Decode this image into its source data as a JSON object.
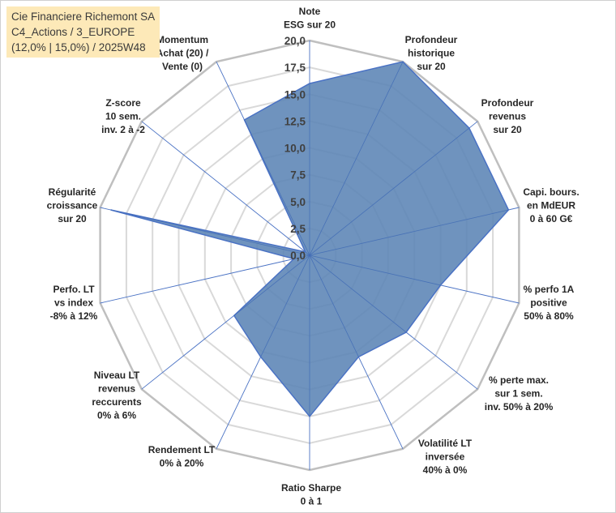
{
  "chart_data": {
    "type": "radar",
    "title": [
      "Cie Financiere Richemont SA",
      "C4_Actions / 3_EUROPE",
      "(12,0% | 15,0%) / 2025W48"
    ],
    "rmin": 0,
    "rmax": 20,
    "ticks": [
      "0,0",
      "2,5",
      "5,0",
      "7,5",
      "10,0",
      "12,5",
      "15,0",
      "17,5",
      "20,0"
    ],
    "tick_values": [
      0,
      2.5,
      5,
      7.5,
      10,
      12.5,
      15,
      17.5,
      20
    ],
    "colors": {
      "fill": "#5b84b5",
      "stroke": "#4a72c4",
      "grid": "#d9d9d9",
      "spoke": "#4a72c4",
      "background": "#ffffff"
    },
    "axes": [
      {
        "label": [
          "Note",
          "ESG sur 20"
        ],
        "value": 16
      },
      {
        "label": [
          "Profondeur",
          "historique",
          "sur 20"
        ],
        "value": 20
      },
      {
        "label": [
          "Profondeur",
          "revenus",
          "sur 20"
        ],
        "value": 19
      },
      {
        "label": [
          "Capi. bours.",
          "en MdEUR",
          "0 à 60 G€"
        ],
        "value": 19
      },
      {
        "label": [
          "% perfo 1A",
          "positive",
          "50% à 80%"
        ],
        "value": 12.5
      },
      {
        "label": [
          "% perte max.",
          "sur 1 sem.",
          "inv. 50% à 20%"
        ],
        "value": 11.5
      },
      {
        "label": [
          "Volatilité LT",
          "inversée",
          "40% à 0%"
        ],
        "value": 10.5
      },
      {
        "label": [
          "Ratio Sharpe",
          "0 à 1"
        ],
        "value": 15
      },
      {
        "label": [
          "Rendement LT",
          "0% à 20%"
        ],
        "value": 10.5
      },
      {
        "label": [
          "Niveau LT",
          "revenus",
          "reccurents",
          "0% à 6%"
        ],
        "value": 9
      },
      {
        "label": [
          "Perfo. LT",
          "vs index",
          "-8% à 12%"
        ],
        "value": 1.5
      },
      {
        "label": [
          "Régularité",
          "croissance",
          "sur 20"
        ],
        "value": 19
      },
      {
        "label": [
          "Z-score",
          "10 sem.",
          "inv. 2 à -2"
        ],
        "value": 0.5
      },
      {
        "label": [
          "Momentum",
          "Achat (20) /",
          "Vente (0)"
        ],
        "value": 14
      }
    ]
  }
}
